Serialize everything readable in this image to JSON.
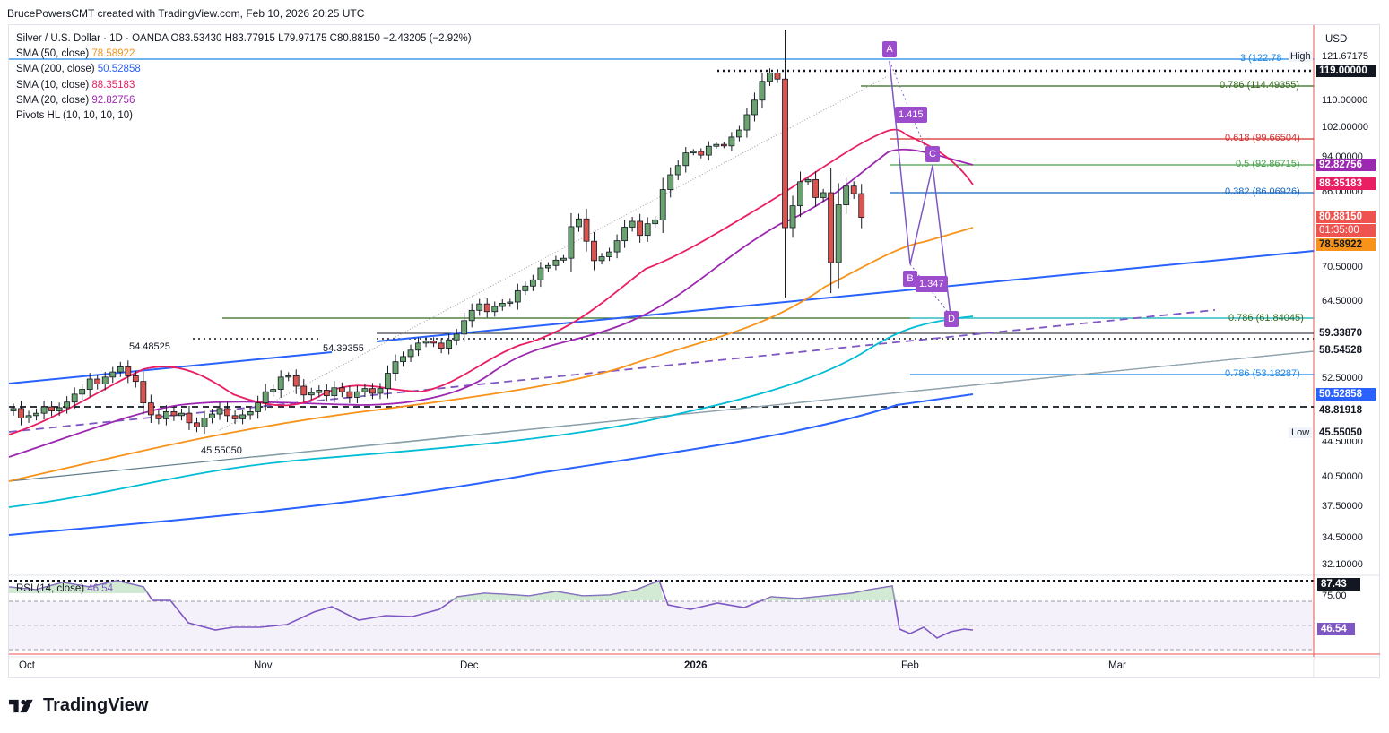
{
  "header": {
    "text": "BrucePowersCMT created with TradingView.com, Feb 10, 2026 20:25 UTC"
  },
  "brand": {
    "name": "TradingView"
  },
  "legend": {
    "symbol": "Silver / U.S. Dollar · 1D · OANDA",
    "ohlc": "O83.53430 H83.77915 L79.97175 C80.88150 −2.43205 (−2.92%)",
    "sma50": {
      "label": "SMA (50, close)",
      "value": "78.58922",
      "color": "#f7931a"
    },
    "sma200": {
      "label": "SMA (200, close)",
      "value": "50.52858",
      "color": "#2962ff"
    },
    "sma10": {
      "label": "SMA (10, close)",
      "value": "88.35183",
      "color": "#e91e63"
    },
    "sma20": {
      "label": "SMA (20, close)",
      "value": "92.82756",
      "color": "#9c27b0"
    },
    "pivots": {
      "label": "Pivots HL (10, 10, 10, 10)"
    }
  },
  "price_axis": {
    "currency": "USD",
    "ticks": [
      "121.67175",
      "110.00000",
      "102.00000",
      "94.00000",
      "86.00000",
      "70.50000",
      "64.50000",
      "52.50000",
      "44.50000",
      "40.50000",
      "37.50000",
      "34.50000",
      "32.10000"
    ],
    "badges": [
      {
        "text": "119.00000",
        "bg": "#131722",
        "fg": "#ffffff"
      },
      {
        "text": "92.82756",
        "bg": "#9c27b0",
        "fg": "#ffffff"
      },
      {
        "text": "88.35183",
        "bg": "#e91e63",
        "fg": "#ffffff"
      },
      {
        "text": "80.88150",
        "bg": "#ef5350",
        "fg": "#ffffff"
      },
      {
        "text": "01:35:00",
        "bg": "#ef5350",
        "fg": "#ffffff"
      },
      {
        "text": "78.58922",
        "bg": "#f7931a",
        "fg": "#131722"
      },
      {
        "text": "59.33870",
        "bg": "#ffffff",
        "fg": "#131722"
      },
      {
        "text": "58.54528",
        "bg": "#ffffff",
        "fg": "#131722"
      },
      {
        "text": "50.52858",
        "bg": "#2962ff",
        "fg": "#ffffff"
      },
      {
        "text": "48.81918",
        "bg": "#ffffff",
        "fg": "#131722"
      },
      {
        "text": "45.55050",
        "bg": "#ffffff",
        "fg": "#131722"
      }
    ],
    "high_label": "High",
    "low_label": "Low"
  },
  "time_axis": [
    "Oct",
    "Nov",
    "Dec",
    "2026",
    "Feb",
    "Mar"
  ],
  "fib_labels": {
    "f3": "3 (122.78",
    "f786a": "0.786 (114.49355)",
    "f618": "0.618 (99.66504)",
    "f5": "0.5 (92.86715)",
    "f382": "0.382 (86.06926)",
    "f786b": "0.786 (61.84045)",
    "f786c": "0.786 (53.18287)"
  },
  "pattern_labels": {
    "A": "A",
    "B": "B",
    "C": "C",
    "D": "D",
    "r1": "1.415",
    "r2": "1.347"
  },
  "pivot_labels": {
    "p1": "54.48525",
    "p2": "54.39355",
    "p3": "45.55050"
  },
  "rsi": {
    "label": "RSI (14, close)",
    "value": "46.54",
    "ticks": [
      "87.43",
      "75.00"
    ],
    "badge": "46.54",
    "top_badge": "87.43"
  },
  "chart_data": {
    "type": "candlestick",
    "title": "Silver / U.S. Dollar · 1D · OANDA",
    "ylim": [
      32.1,
      121.67
    ],
    "ylabel": "USD",
    "x_labels": [
      "Oct",
      "Nov",
      "Dec",
      "2026",
      "Feb",
      "Mar"
    ],
    "closes": [
      48.8,
      47.6,
      47.9,
      48.2,
      49.0,
      48.5,
      48.9,
      49.6,
      50.6,
      51.2,
      52.5,
      51.9,
      52.8,
      53.6,
      54.4,
      53.0,
      52.2,
      49.5,
      48.0,
      47.5,
      48.4,
      47.9,
      48.2,
      47.0,
      46.5,
      47.6,
      48.1,
      48.8,
      47.9,
      47.5,
      48.0,
      48.4,
      49.5,
      50.9,
      51.2,
      52.8,
      53.0,
      51.6,
      50.5,
      50.8,
      51.1,
      50.4,
      51.4,
      50.9,
      50.2,
      50.9,
      51.3,
      50.7,
      51.3,
      53.4,
      55.2,
      56.0,
      57.0,
      58.1,
      58.4,
      58.1,
      57.3,
      58.6,
      59.5,
      61.6,
      63.2,
      64.2,
      63.0,
      63.8,
      64.3,
      64.5,
      66.5,
      67.3,
      68.4,
      70.5,
      71.0,
      72.1,
      72.5,
      79.0,
      80.6,
      76.0,
      72.0,
      72.8,
      73.8,
      76.1,
      78.9,
      80.1,
      77.2,
      79.6,
      80.4,
      86.7,
      90.1,
      92.2,
      95.3,
      95.7,
      94.7,
      97.1,
      97.6,
      97.2,
      99.6,
      101.5,
      106.0,
      110.3,
      115.3,
      117.5,
      115.9,
      78.8,
      83.3,
      88.5,
      89.0,
      85.0,
      86.0,
      71.6,
      83.5,
      87.5,
      85.8,
      80.9
    ],
    "sma10_last": 88.35183,
    "sma20_last": 92.82756,
    "sma50_last": 78.58922,
    "sma200_last": 50.52858,
    "fib_levels": [
      {
        "label": "3",
        "value": 122.78
      },
      {
        "label": "0.786",
        "value": 114.49355
      },
      {
        "label": "0.618",
        "value": 99.66504
      },
      {
        "label": "0.5",
        "value": 92.86715
      },
      {
        "label": "0.382",
        "value": 86.06926
      },
      {
        "label": "0.786",
        "value": 61.84045
      },
      {
        "label": "0.786",
        "value": 53.18287
      }
    ],
    "horizontal_levels": [
      119.0,
      59.3387,
      58.54528,
      48.81918
    ],
    "rsi_last": 46.54,
    "rsi_high": 87.43
  }
}
